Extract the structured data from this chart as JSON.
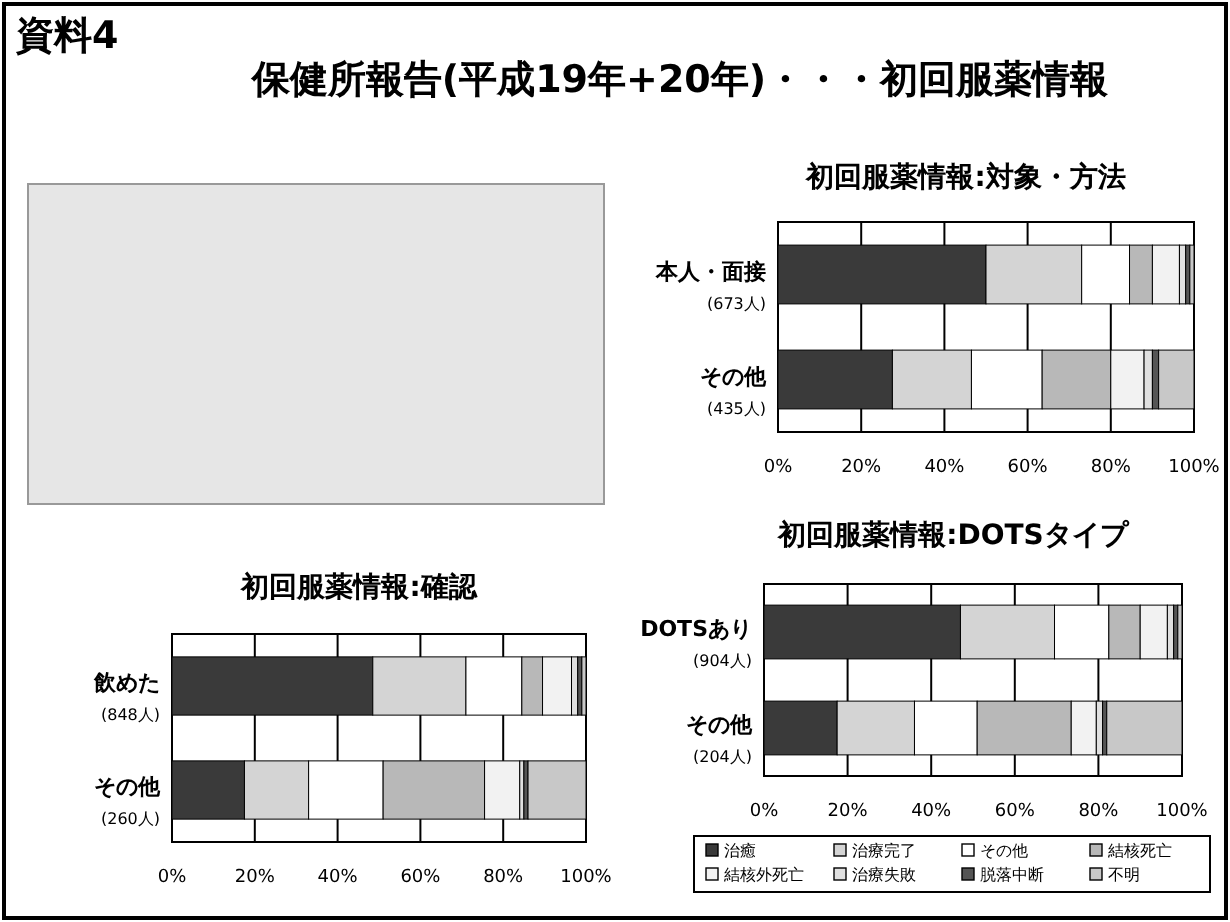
{
  "chart_data": [
    {
      "type": "other",
      "title": "保健所報告(平成19年+20年)・・・初回服薬情報",
      "annotations": [
        "資料4"
      ]
    },
    {
      "type": "bar",
      "orientation": "horizontal",
      "stacked": true,
      "title": "初回服薬情報:対象・方法",
      "categories": [
        "本人・面接\n(673人)",
        "その他\n(435人)"
      ],
      "xlim": [
        0,
        100
      ],
      "xticks": [
        {
          "value": 0,
          "label": "0%"
        },
        {
          "value": 20,
          "label": "20%"
        },
        {
          "value": 40,
          "label": "40%"
        },
        {
          "value": 60,
          "label": "60%"
        },
        {
          "value": 80,
          "label": "80%"
        },
        {
          "value": 100,
          "label": "100%"
        }
      ],
      "grid": "x",
      "legend": false,
      "series": [
        {
          "color": "#3a3a3a",
          "values": [
            50,
            27.5
          ]
        },
        {
          "color": "#d4d4d4",
          "values": [
            23,
            19
          ]
        },
        {
          "color": "#ffffff",
          "values": [
            11.5,
            17
          ]
        },
        {
          "color": "#b8b8b8",
          "values": [
            5.5,
            16.5
          ]
        },
        {
          "color": "#f2f2f2",
          "values": [
            6.5,
            8
          ]
        },
        {
          "color": "#e0e0e0",
          "values": [
            1.5,
            2
          ]
        },
        {
          "color": "#555555",
          "values": [
            1,
            1.5
          ]
        },
        {
          "color": "#c8c8c8",
          "values": [
            1,
            8.5
          ]
        }
      ]
    },
    {
      "type": "bar",
      "orientation": "horizontal",
      "stacked": true,
      "title": "初回服薬情報:確認",
      "categories": [
        "飲めた\n(848人)",
        "その他\n(260人)"
      ],
      "xlim": [
        0,
        100
      ],
      "xticks": [
        {
          "value": 0,
          "label": "0%"
        },
        {
          "value": 20,
          "label": "20%"
        },
        {
          "value": 40,
          "label": "40%"
        },
        {
          "value": 60,
          "label": "60%"
        },
        {
          "value": 80,
          "label": "80%"
        },
        {
          "value": 100,
          "label": "100%"
        }
      ],
      "grid": "x",
      "legend": false,
      "series": [
        {
          "color": "#3a3a3a",
          "values": [
            48.5,
            17.5
          ]
        },
        {
          "color": "#d4d4d4",
          "values": [
            22.5,
            15.5
          ]
        },
        {
          "color": "#ffffff",
          "values": [
            13.5,
            18
          ]
        },
        {
          "color": "#b8b8b8",
          "values": [
            5,
            24.5
          ]
        },
        {
          "color": "#f2f2f2",
          "values": [
            7,
            8.5
          ]
        },
        {
          "color": "#e0e0e0",
          "values": [
            1.5,
            1
          ]
        },
        {
          "color": "#555555",
          "values": [
            1,
            1
          ]
        },
        {
          "color": "#c8c8c8",
          "values": [
            1,
            14
          ]
        }
      ]
    },
    {
      "type": "bar",
      "orientation": "horizontal",
      "stacked": true,
      "title": "初回服薬情報:DOTSタイプ",
      "categories": [
        "DOTSあり\n(904人)",
        "その他\n(204人)"
      ],
      "xlim": [
        0,
        100
      ],
      "xticks": [
        {
          "value": 0,
          "label": "0%"
        },
        {
          "value": 20,
          "label": "20%"
        },
        {
          "value": 40,
          "label": "40%"
        },
        {
          "value": 60,
          "label": "60%"
        },
        {
          "value": 80,
          "label": "80%"
        },
        {
          "value": 100,
          "label": "100%"
        }
      ],
      "grid": "x",
      "legend": "bottom",
      "series": [
        {
          "name": "治癒",
          "color": "#3a3a3a",
          "values": [
            47,
            17.5
          ]
        },
        {
          "name": "治療完了",
          "color": "#d4d4d4",
          "values": [
            22.5,
            18.5
          ]
        },
        {
          "name": "その他",
          "color": "#ffffff",
          "values": [
            13,
            15
          ]
        },
        {
          "name": "結核死亡",
          "color": "#b8b8b8",
          "values": [
            7.5,
            22.5
          ]
        },
        {
          "name": "結核外死亡",
          "color": "#f2f2f2",
          "values": [
            6.5,
            6
          ]
        },
        {
          "name": "治療失敗",
          "color": "#e0e0e0",
          "values": [
            1.5,
            1.5
          ]
        },
        {
          "name": "脱落中断",
          "color": "#555555",
          "values": [
            1,
            1
          ]
        },
        {
          "name": "不明",
          "color": "#c8c8c8",
          "values": [
            1,
            18
          ]
        }
      ]
    }
  ]
}
